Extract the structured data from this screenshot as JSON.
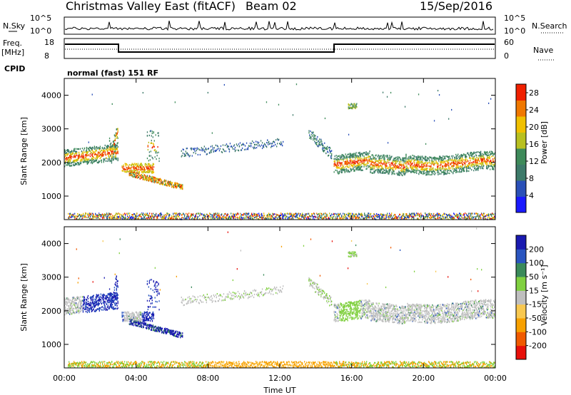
{
  "header": {
    "title": "Christmas Valley East (fitACF)",
    "beam": "Beam 02",
    "date": "15/Sep/2016"
  },
  "panels": {
    "nsky": {
      "label": "N.Sky",
      "ticks": [
        "10^5",
        "10^0"
      ],
      "right_label": "N.Search"
    },
    "freq": {
      "label_line1": "Freq.",
      "label_line2": "[MHz]",
      "ticks_left": [
        "18",
        "8"
      ],
      "ticks_right": [
        "60",
        "0"
      ],
      "right_label": "Nave"
    },
    "cpid": {
      "label": "CPID",
      "mode": "normal (fast) 151 RF"
    }
  },
  "colors": {
    "power": [
      "#1a1aff",
      "#2a50b8",
      "#3d7a6a",
      "#3e8a5a",
      "#b8c020",
      "#f0c000",
      "#f07800",
      "#f02000"
    ],
    "velocity": [
      "#e8100a",
      "#f05a00",
      "#f7a000",
      "#f8c850",
      "#bfbfbf",
      "#80d040",
      "#3a8a5a",
      "#2a55c0",
      "#1a1ab0"
    ]
  },
  "chart_data": [
    {
      "type": "heatmap",
      "title": "",
      "xlabel": "",
      "ylabel": "Slant Range [km]",
      "xlim": [
        "00:00",
        "00:00"
      ],
      "ylim": [
        300,
        4500
      ],
      "x_ticks": [
        "00:00",
        "04:00",
        "08:00",
        "12:00",
        "16:00",
        "20:00",
        "00:00"
      ],
      "y_ticks": [
        1000,
        2000,
        3000,
        4000
      ],
      "colorbar": {
        "label": "Power [dB]",
        "ticks": [
          4,
          8,
          12,
          16,
          20,
          24,
          28
        ],
        "range": [
          0,
          30
        ]
      }
    },
    {
      "type": "heatmap",
      "title": "",
      "xlabel": "Time UT",
      "ylabel": "Slant Range [km]",
      "xlim": [
        "00:00",
        "00:00"
      ],
      "ylim": [
        300,
        4500
      ],
      "x_ticks": [
        "00:00",
        "04:00",
        "08:00",
        "12:00",
        "16:00",
        "20:00",
        "00:00"
      ],
      "y_ticks": [
        1000,
        2000,
        3000,
        4000
      ],
      "colorbar": {
        "label": "Velocity [m s⁻¹]",
        "ticks": [
          200,
          100,
          50,
          15,
          -15,
          -50,
          -100,
          -200
        ]
      }
    }
  ]
}
